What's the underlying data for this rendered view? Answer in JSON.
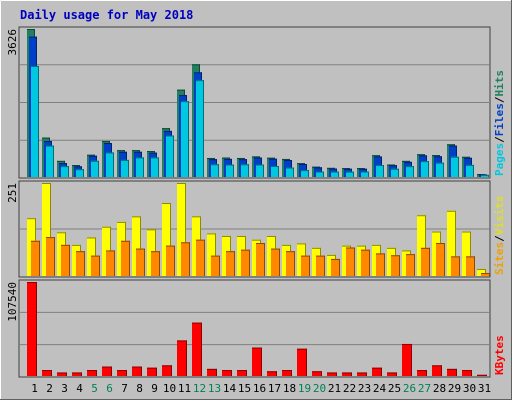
{
  "chart_data": [
    {
      "panel": "hits-files-pages",
      "type": "bar",
      "title": "Daily usage for May 2018",
      "ymax_label": "3626",
      "ylim": [
        0,
        3626
      ],
      "categories": [
        "1",
        "2",
        "3",
        "4",
        "5",
        "6",
        "7",
        "8",
        "9",
        "10",
        "11",
        "12",
        "13",
        "14",
        "15",
        "16",
        "17",
        "18",
        "19",
        "20",
        "21",
        "22",
        "23",
        "24",
        "25",
        "26",
        "27",
        "28",
        "29",
        "30",
        "31"
      ],
      "weekend_days": [
        "5",
        "6",
        "12",
        "13",
        "19",
        "20",
        "26",
        "27"
      ],
      "legend": [
        {
          "label": "Pages",
          "color": "#00c8e0"
        },
        {
          "sep": "/"
        },
        {
          "label": "Files",
          "color": "#0040c8"
        },
        {
          "sep": "/"
        },
        {
          "label": "Hits",
          "color": "#208060"
        }
      ],
      "series": [
        {
          "name": "Hits",
          "color": "#208060",
          "values": [
            3626,
            966,
            395,
            293,
            546,
            881,
            658,
            658,
            637,
            1196,
            2140,
            2761,
            466,
            478,
            466,
            505,
            473,
            442,
            340,
            253,
            224,
            220,
            220,
            534,
            307,
            395,
            558,
            537,
            802,
            495,
            73
          ]
        },
        {
          "name": "Files",
          "color": "#0040c8",
          "values": [
            3438,
            882,
            341,
            261,
            520,
            833,
            617,
            617,
            596,
            1129,
            2007,
            2564,
            436,
            443,
            436,
            476,
            447,
            416,
            318,
            237,
            207,
            201,
            201,
            503,
            288,
            370,
            530,
            507,
            771,
            469,
            64
          ]
        },
        {
          "name": "Pages",
          "color": "#00c8e0",
          "values": [
            2720,
            769,
            266,
            191,
            397,
            602,
            419,
            480,
            480,
            1017,
            1857,
            2372,
            312,
            306,
            312,
            306,
            269,
            231,
            169,
            134,
            134,
            131,
            134,
            293,
            201,
            266,
            389,
            352,
            496,
            296,
            52
          ]
        }
      ]
    },
    {
      "panel": "visits-sites",
      "type": "bar",
      "ymax_label": "251",
      "ylim": [
        0,
        251
      ],
      "legend": [
        {
          "label": "Sites",
          "color": "#f0a000"
        },
        {
          "sep": "/"
        },
        {
          "label": "Visits",
          "color": "#e0e020"
        }
      ],
      "series": [
        {
          "name": "Visits",
          "color": "#ffff00",
          "values": [
            156,
            251,
            118,
            84,
            104,
            133,
            146,
            161,
            126,
            197,
            251,
            161,
            115,
            108,
            108,
            98,
            108,
            84,
            88,
            76,
            57,
            82,
            82,
            84,
            76,
            69,
            164,
            120,
            176,
            120,
            19
          ]
        },
        {
          "name": "Sites",
          "color": "#ff8800",
          "values": [
            95,
            105,
            84,
            67,
            55,
            69,
            95,
            74,
            67,
            82,
            91,
            98,
            55,
            67,
            71,
            89,
            74,
            67,
            55,
            55,
            46,
            77,
            71,
            61,
            56,
            59,
            76,
            89,
            53,
            53,
            8
          ]
        }
      ]
    },
    {
      "panel": "kbytes",
      "type": "bar",
      "ymax_label": "107540",
      "ylim": [
        0,
        107540
      ],
      "legend": [
        {
          "label": "KBytes",
          "color": "#ff0000"
        }
      ],
      "series": [
        {
          "name": "KBytes",
          "color": "#ff0000",
          "values": [
            107540,
            6785,
            4071,
            4071,
            6785,
            10857,
            6785,
            10857,
            9500,
            12214,
            40713,
            61069,
            8142,
            6785,
            6785,
            32570,
            5428,
            6785,
            31214,
            5428,
            4071,
            4071,
            4071,
            9500,
            4071,
            36643,
            6785,
            12214,
            8142,
            6785,
            1357
          ]
        }
      ]
    }
  ]
}
